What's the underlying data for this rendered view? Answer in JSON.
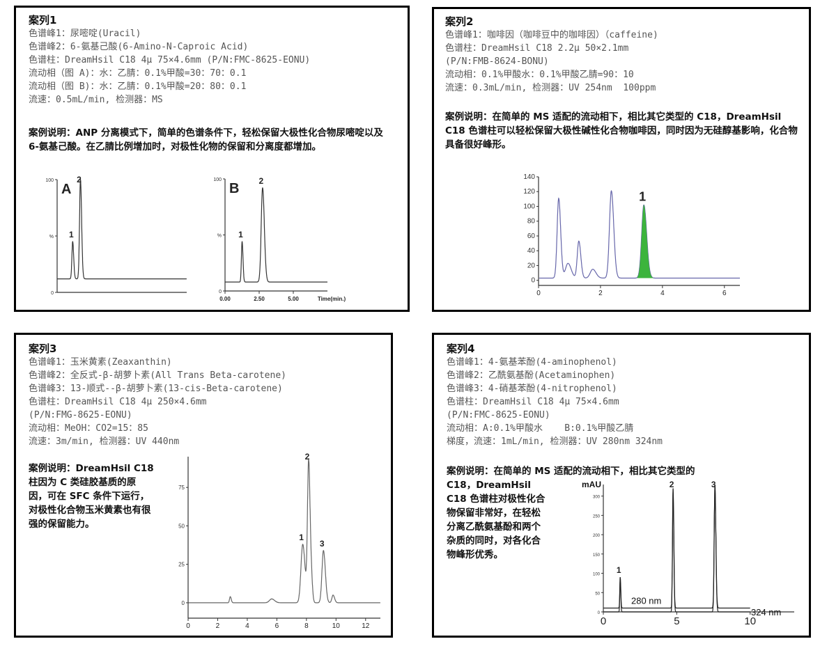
{
  "cases": [
    {
      "title": "案列1",
      "lines": [
        "色谱峰1：尿嘧啶(Uracil)",
        "色谱峰2：6-氨基己酸(6-Amino-N-Caproic Acid)",
        "色谱柱：DreamHsil C18 4μ 75×4.6mm (P/N:FMC-8625-EONU)",
        "流动相（图 A)：水：乙腈：0.1%甲酸=30：70：0.1",
        "流动相（图 B)：水：乙腈：0.1%甲酸=20：80：0.1",
        "流速：0.5mL/min, 检测器：MS"
      ],
      "description": "案例说明：ANP 分离模式下，简单的色谱条件下，轻松保留大极性化合物尿嘧啶以及 6-氨基己酸。在乙腈比例增加时，对极性化物的保留和分离度都增加。"
    },
    {
      "title": "案列2",
      "lines": [
        "色谱峰1：咖啡因（咖啡豆中的咖啡因）（caffeine)",
        "色谱柱：DreamHsil C18 2.2μ 50×2.1mm",
        "(P/N:FMB-8624-BONU)",
        "流动相：0.1%甲酸水：0.1%甲酸乙腈=90：10",
        "流速：0.3mL/min, 检测器：UV 254nm  100ppm"
      ],
      "description": "案例说明：在简单的 MS 适配的流动相下，相比其它类型的 C18，DreamHsil C18 色谱柱可以轻松保留大极性碱性化合物咖啡因，同时因为无硅醇基影响，化合物具备很好峰形。"
    },
    {
      "title": "案列3",
      "lines": [
        "色谱峰1：玉米黄素(Zeaxanthin)",
        "色谱峰2：全反式-β-胡萝卜素(All Trans Beta-carotene)",
        "色谱峰3：13-顺式--β-胡萝卜素(13-cis-Beta-carotene)",
        "色谱柱：DreamHsil C18 4μ 250×4.6mm",
        "(P/N:FMG-8625-EONU)",
        "流动相：MeOH：CO2=15：85",
        "流速：3m/min, 检测器：UV 440nm"
      ],
      "description": "案例说明：DreamHsil C18 柱因为 C 类硅胶基质的原因，可在 SFC 条件下运行，对极性化合物玉米黄素也有很强的保留能力。"
    },
    {
      "title": "案列4",
      "lines": [
        "色谱峰1：4-氨基苯酚(4-aminophenol)",
        "色谱峰2：乙酰氨基酚(Acetaminophen)",
        "色谱峰3：4-硝基苯酚(4-nitrophenol)",
        "色谱柱：DreamHsil C18 4μ 75×4.6mm",
        "(P/N:FMC-8625-EONU)",
        "流动相：A:0.1%甲酸水    B:0.1%甲酸乙腈",
        "梯度，流速：1mL/min, 检测器：UV 280nm 324nm"
      ],
      "description_first": "案例说明：在简单的 MS 适配的流动相下，相比其它类型的",
      "description_rest": "C18，DreamHsil C18 色谱柱对极性化合物保留非常好，在轻松分离乙酰氨基酚和两个杂质的同时，对各化合物峰形优秀。"
    }
  ],
  "chart_data": [
    {
      "type": "line",
      "panel_label": "A",
      "xlim": [
        0,
        10
      ],
      "ylim": [
        0,
        100
      ],
      "yticks": [
        "0",
        "%",
        "100"
      ],
      "xticks": [],
      "baseline": 12,
      "peaks": [
        {
          "label": "1",
          "rt": 1.2,
          "height": 33,
          "width": 0.06
        },
        {
          "label": "2",
          "rt": 1.8,
          "height": 88,
          "width": 0.07
        }
      ],
      "color": "#333333"
    },
    {
      "type": "line",
      "panel_label": "B",
      "xlim": [
        0,
        7.5
      ],
      "ylim": [
        0,
        100
      ],
      "yticks": [
        "0",
        "%",
        "100"
      ],
      "xticks": [
        "0.00",
        "2.50",
        "5.00"
      ],
      "xlabel": "Time(min.)",
      "baseline": 8,
      "peaks": [
        {
          "label": "1",
          "rt": 1.25,
          "height": 36,
          "width": 0.05
        },
        {
          "label": "2",
          "rt": 2.75,
          "height": 84,
          "width": 0.1
        }
      ],
      "color": "#333333"
    },
    {
      "type": "line",
      "xlim": [
        0,
        6.5
      ],
      "ylim": [
        -5,
        140
      ],
      "yticks": [
        "0",
        "20",
        "40",
        "60",
        "80",
        "100",
        "120",
        "140"
      ],
      "xticks": [
        "0",
        "2",
        "4",
        "6"
      ],
      "baseline": 3,
      "peaks": [
        {
          "label": "",
          "rt": 0.65,
          "height": 108,
          "width": 0.05
        },
        {
          "label": "",
          "rt": 0.95,
          "height": 20,
          "width": 0.08
        },
        {
          "label": "",
          "rt": 1.3,
          "height": 50,
          "width": 0.05
        },
        {
          "label": "",
          "rt": 1.75,
          "height": 12,
          "width": 0.08
        },
        {
          "label": "",
          "rt": 2.35,
          "height": 118,
          "width": 0.06
        },
        {
          "label": "1",
          "rt": 3.4,
          "height": 99,
          "width": 0.07,
          "fill": "#3cb43c"
        }
      ],
      "color": "#6666aa"
    },
    {
      "type": "line",
      "xlim": [
        0,
        13
      ],
      "ylim": [
        -10,
        95
      ],
      "yticks": [
        "0",
        "25",
        "50",
        "75"
      ],
      "xticks": [
        "0",
        "2",
        "4",
        "6",
        "8",
        "10",
        "12"
      ],
      "baseline": 0,
      "peaks": [
        {
          "label": "",
          "rt": 2.85,
          "height": 4,
          "width": 0.05
        },
        {
          "label": "",
          "rt": 5.65,
          "height": 2.5,
          "width": 0.15
        },
        {
          "label": "1",
          "rt": 7.75,
          "height": 38,
          "width": 0.12
        },
        {
          "label": "2",
          "rt": 8.15,
          "height": 92,
          "width": 0.08
        },
        {
          "label": "",
          "rt": 8.35,
          "height": 10,
          "width": 0.06
        },
        {
          "label": "3",
          "rt": 9.15,
          "height": 34,
          "width": 0.1
        },
        {
          "label": "",
          "rt": 9.8,
          "height": 5,
          "width": 0.08
        }
      ],
      "color": "#666666"
    },
    {
      "type": "line",
      "xlim": [
        0,
        13
      ],
      "ylim": [
        0,
        330
      ],
      "ylabel": "mAU",
      "yticks": [
        "0",
        "50",
        "100",
        "150",
        "200",
        "250",
        "300"
      ],
      "xticks": [
        "0",
        "5",
        "10"
      ],
      "series": [
        {
          "name": "280 nm",
          "baseline": 10
        },
        {
          "name": "324 nm",
          "baseline": 0
        }
      ],
      "peaks": [
        {
          "label": "1",
          "rt": 1.15,
          "height": 80,
          "width": 0.03
        },
        {
          "label": "2",
          "rt": 4.75,
          "height": 310,
          "width": 0.04
        },
        {
          "label": "3",
          "rt": 7.6,
          "height": 320,
          "width": 0.05
        }
      ],
      "color": "#222222"
    }
  ]
}
